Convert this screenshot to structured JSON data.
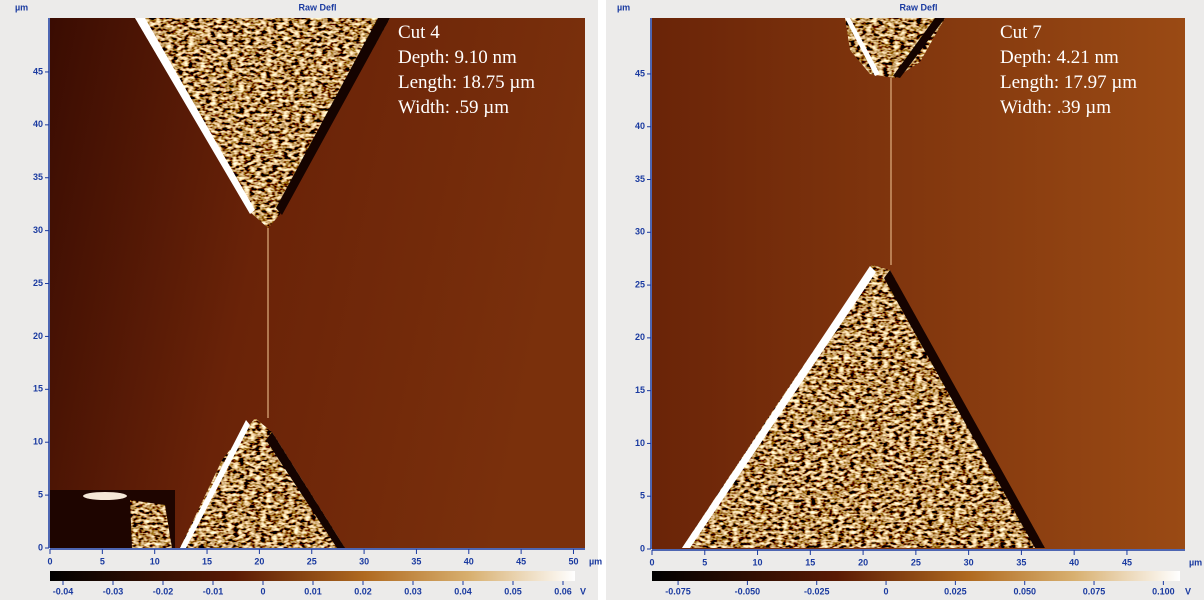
{
  "panels": [
    {
      "title": "Raw Defl",
      "y_unit": "µm",
      "x_unit": "µm",
      "xlim": [
        0,
        51.1
      ],
      "ylim": [
        0,
        50.1
      ],
      "xticks": [
        0,
        5,
        10,
        15,
        20,
        25,
        30,
        35,
        40,
        45,
        50
      ],
      "yticks": [
        0,
        5,
        10,
        15,
        20,
        25,
        30,
        35,
        40,
        45
      ],
      "colorbar": {
        "lim": [
          -0.0426,
          0.0624
        ],
        "ticks": [
          -0.04,
          -0.03,
          -0.02,
          -0.01,
          0,
          0.01,
          0.02,
          0.03,
          0.04,
          0.05,
          0.06
        ],
        "unit": "V"
      },
      "annotation": [
        "Cut 4",
        "Depth: 9.10 nm",
        "Length: 18.75 µm",
        "Width: .59 µm"
      ]
    },
    {
      "title": "Raw Defl",
      "y_unit": "µm",
      "x_unit": "µm",
      "xlim": [
        0,
        50.5
      ],
      "ylim": [
        0,
        50.3
      ],
      "xticks": [
        0,
        5,
        10,
        15,
        20,
        25,
        30,
        35,
        40,
        45
      ],
      "yticks": [
        0,
        5,
        10,
        15,
        20,
        25,
        30,
        35,
        40,
        45
      ],
      "colorbar": {
        "lim": [
          -0.0844,
          0.106
        ],
        "ticks": [
          -0.075,
          {
            "value": -0.05,
            "label": "-0.050"
          },
          -0.025,
          0,
          0.025,
          {
            "value": 0.05,
            "label": "0.050"
          },
          0.075,
          {
            "value": 0.1,
            "label": "0.100"
          }
        ],
        "unit": "V"
      },
      "annotation": [
        "Cut 7",
        "Depth: 4.21 nm",
        "Length: 17.97 µm",
        "Width: .39 µm"
      ]
    }
  ]
}
